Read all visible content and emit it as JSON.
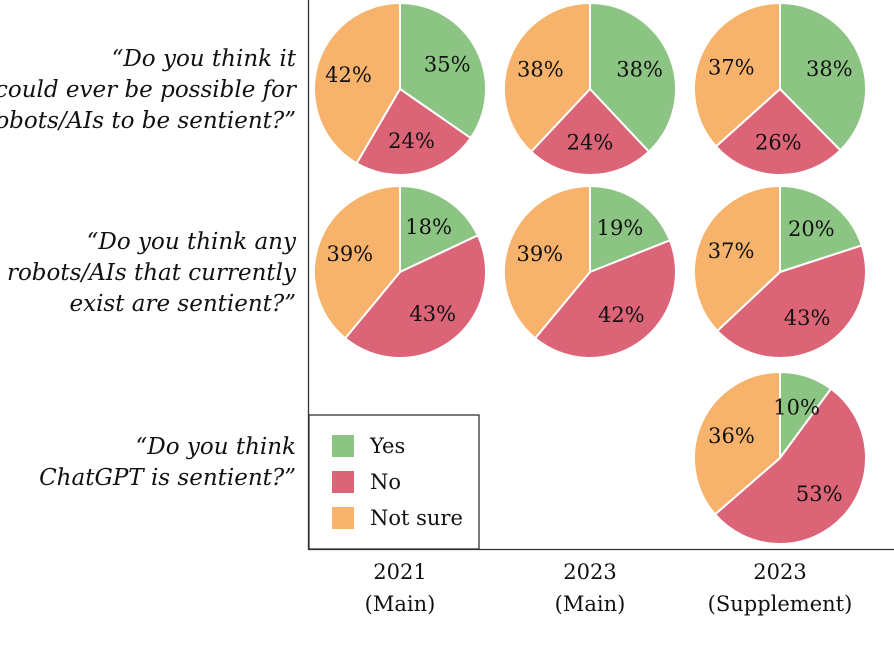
{
  "chart_data": {
    "type": "pie",
    "categories": [
      "Yes",
      "No",
      "Not sure"
    ],
    "colors": {
      "Yes": "#8cc483",
      "No": "#db6577",
      "Not sure": "#f7b26b"
    },
    "columns": [
      {
        "year": "2021",
        "sample": "(Main)"
      },
      {
        "year": "2023",
        "sample": "(Main)"
      },
      {
        "year": "2023",
        "sample": "(Supplement)"
      }
    ],
    "rows": [
      {
        "question": [
          "“Do you think it",
          "could ever be possible for",
          "robots/AIs to be sentient?”"
        ],
        "pies": [
          {
            "Yes": 35,
            "No": 24,
            "Not sure": 42
          },
          {
            "Yes": 38,
            "No": 24,
            "Not sure": 38
          },
          {
            "Yes": 38,
            "No": 26,
            "Not sure": 37
          }
        ]
      },
      {
        "question": [
          "“Do you think any",
          "robots/AIs that currently",
          "exist are sentient?”"
        ],
        "pies": [
          {
            "Yes": 18,
            "No": 43,
            "Not sure": 39
          },
          {
            "Yes": 19,
            "No": 42,
            "Not sure": 39
          },
          {
            "Yes": 20,
            "No": 43,
            "Not sure": 37
          }
        ]
      },
      {
        "question": [
          "“Do you think",
          "ChatGPT is sentient?”"
        ],
        "pies": [
          null,
          null,
          {
            "Yes": 10,
            "No": 53,
            "Not sure": 36
          }
        ]
      }
    ],
    "legend": {
      "position": "bottom-left",
      "items": [
        "Yes",
        "No",
        "Not sure"
      ]
    },
    "value_suffix": "%"
  }
}
